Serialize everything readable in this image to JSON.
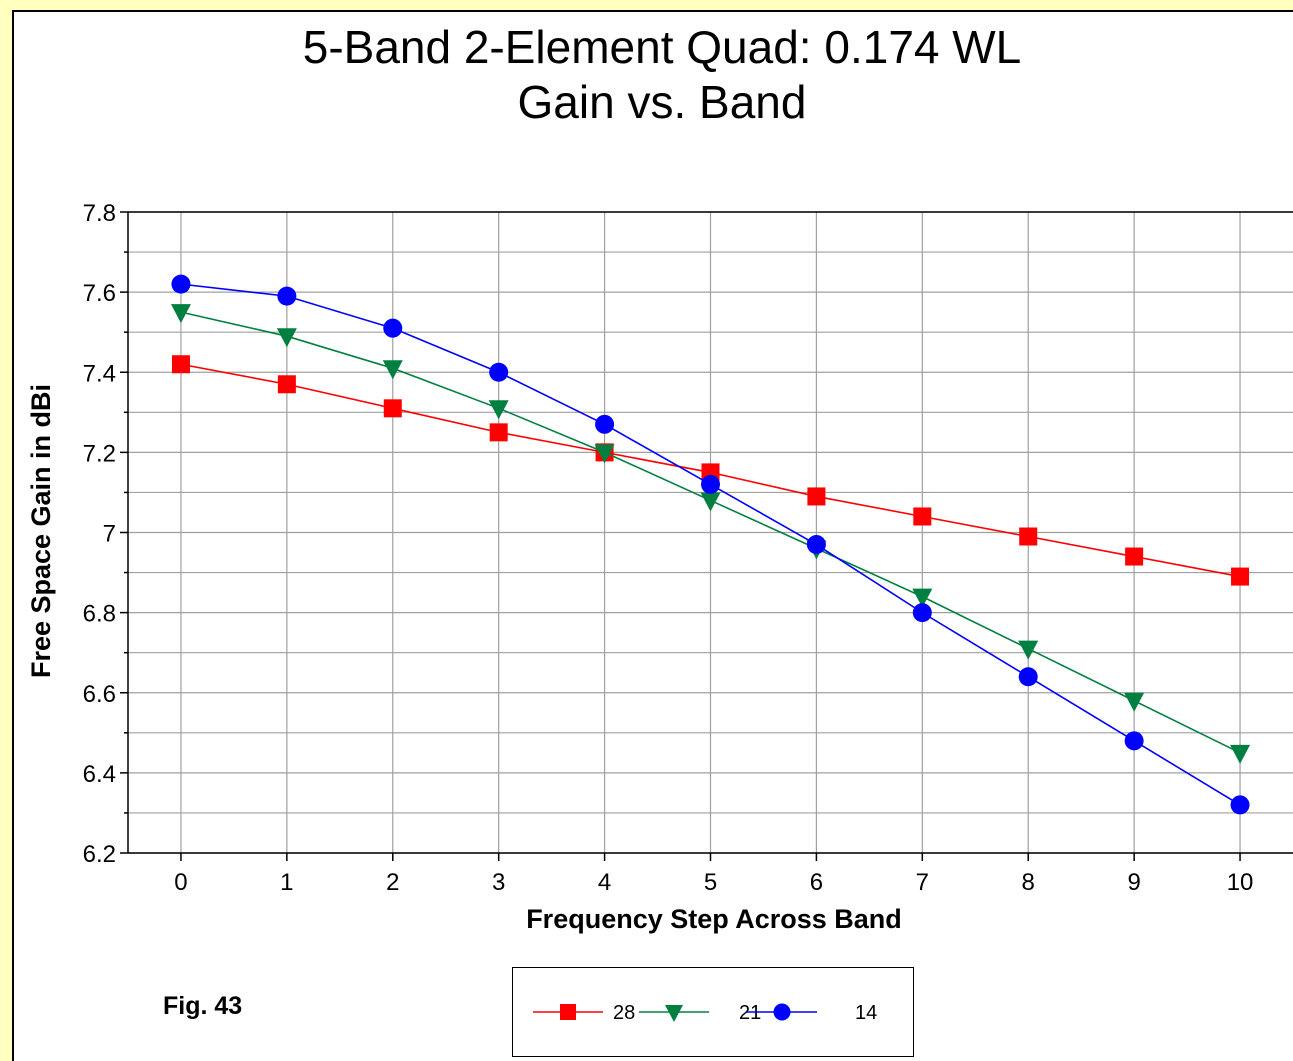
{
  "chart_data": {
    "type": "line",
    "title": "5-Band 2-Element Quad: 0.174 WL",
    "subtitle": "Gain vs. Band",
    "xlabel": "Frequency Step Across Band",
    "ylabel": "Free Space Gain in dBi",
    "x": [
      0,
      1,
      2,
      3,
      4,
      5,
      6,
      7,
      8,
      9,
      10
    ],
    "xlim": [
      -0.5,
      10.5
    ],
    "ylim": [
      6.2,
      7.8
    ],
    "yticks": [
      6.2,
      6.4,
      6.6,
      6.8,
      7,
      7.2,
      7.4,
      7.6,
      7.8
    ],
    "ytick_labels": [
      "6.2",
      "6.4",
      "6.6",
      "6.8",
      "7",
      "7.2",
      "7.4",
      "7.6",
      "7.8"
    ],
    "xtick_labels": [
      "0",
      "1",
      "2",
      "3",
      "4",
      "5",
      "6",
      "7",
      "8",
      "9",
      "10"
    ],
    "grid": true,
    "legend_position": "bottom-center",
    "series": [
      {
        "name": "28",
        "color": "#ff0000",
        "marker": "square",
        "values": [
          7.42,
          7.37,
          7.31,
          7.25,
          7.2,
          7.15,
          7.09,
          7.04,
          6.99,
          6.94,
          6.89
        ]
      },
      {
        "name": "21",
        "color": "#008040",
        "marker": "triangle-down",
        "values": [
          7.55,
          7.49,
          7.41,
          7.31,
          7.2,
          7.08,
          6.96,
          6.84,
          6.71,
          6.58,
          6.45
        ]
      },
      {
        "name": "14",
        "color": "#0000ff",
        "marker": "circle",
        "values": [
          7.62,
          7.59,
          7.51,
          7.4,
          7.27,
          7.12,
          6.97,
          6.8,
          6.64,
          6.48,
          6.32
        ]
      }
    ]
  },
  "annotation": "Fig. 43",
  "colors": {
    "page_background": "#ffffc0",
    "plot_background": "#ffffff",
    "grid": "#a0a0a0"
  }
}
